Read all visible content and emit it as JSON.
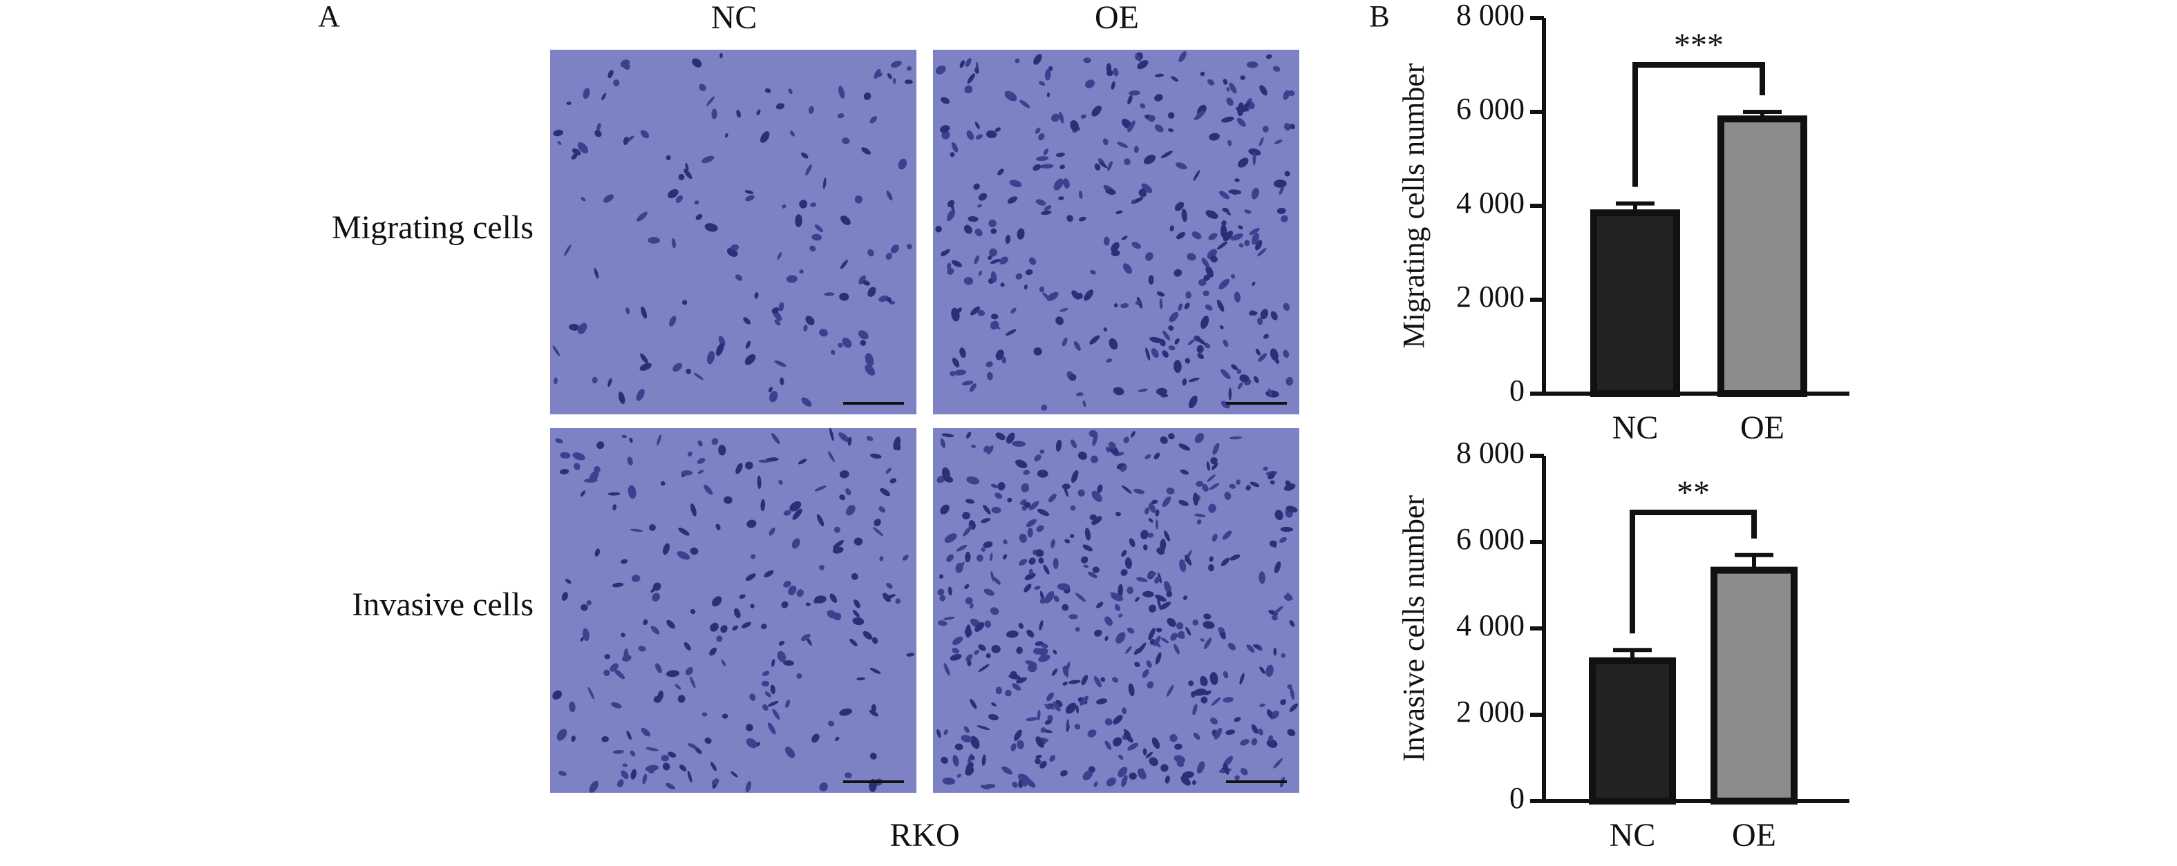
{
  "figure": {
    "panel_a": "A",
    "panel_b": "B",
    "columns": [
      "NC",
      "OE"
    ],
    "rows": [
      "Migrating cells",
      "Invasive cells"
    ],
    "cell_line": "RKO"
  },
  "chart_data": [
    {
      "type": "bar",
      "ylabel": "Migrating cells number",
      "categories": [
        "NC",
        "OE"
      ],
      "values": [
        3850,
        5850
      ],
      "errors": [
        200,
        150
      ],
      "colors": [
        "#222222",
        "#8c8c8c"
      ],
      "ylim": [
        0,
        8000
      ],
      "yticks": [
        0,
        {
          "value": 2000,
          "label": "2 000"
        },
        {
          "value": 4000,
          "label": "4 000"
        },
        {
          "value": 6000,
          "label": "6 000"
        },
        {
          "value": 8000,
          "label": "8 000"
        }
      ],
      "annotation": "***"
    },
    {
      "type": "bar",
      "ylabel": "Invasive cells number",
      "categories": [
        "NC",
        "OE"
      ],
      "values": [
        3250,
        5350
      ],
      "errors": [
        250,
        350
      ],
      "colors": [
        "#222222",
        "#8c8c8c"
      ],
      "ylim": [
        0,
        8000
      ],
      "yticks": [
        0,
        {
          "value": 2000,
          "label": "2 000"
        },
        {
          "value": 4000,
          "label": "4 000"
        },
        {
          "value": 6000,
          "label": "6 000"
        },
        {
          "value": 8000,
          "label": "8 000"
        }
      ],
      "annotation": "**"
    }
  ]
}
